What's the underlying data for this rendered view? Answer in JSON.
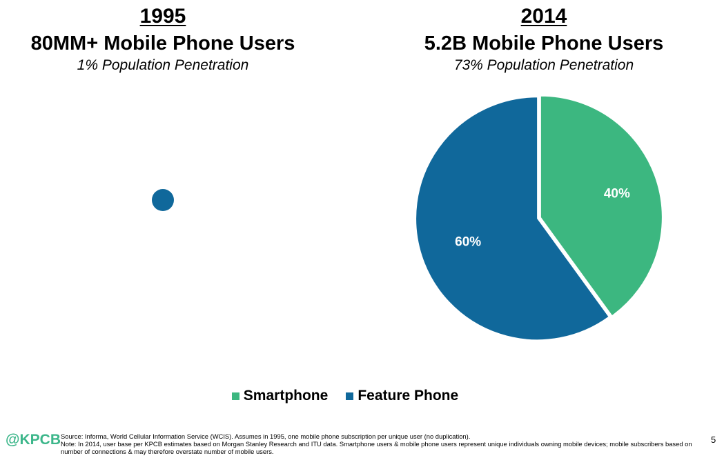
{
  "chart_data": [
    {
      "type": "pie",
      "title": "1995",
      "subtitle": "80MM+ Mobile Phone Users",
      "caption": "1% Population Penetration",
      "slices": [
        {
          "label": "Feature Phone",
          "value": 100
        }
      ]
    },
    {
      "type": "pie",
      "title": "2014",
      "subtitle": "5.2B Mobile Phone Users",
      "caption": "73% Population Penetration",
      "slices": [
        {
          "label": "Smartphone",
          "value": 40,
          "data_label": "40%"
        },
        {
          "label": "Feature Phone",
          "value": 60,
          "data_label": "60%"
        }
      ]
    }
  ],
  "legend": [
    {
      "label": "Smartphone",
      "color": "#3cb780"
    },
    {
      "label": "Feature Phone",
      "color": "#10689b"
    }
  ],
  "colors": {
    "smartphone": "#3cb780",
    "feature_phone": "#10689b",
    "logo": "#3cb68a"
  },
  "footer": {
    "logo": "@KPCB",
    "source": "Source: Informa, World Cellular Information Service (WCIS). Assumes in 1995, one mobile phone subscription per unique user (no duplication).",
    "note": "Note: In 2014, user base per KPCB estimates based on Morgan Stanley Research and ITU data. Smartphone users & mobile phone users represent unique individuals owning mobile devices; mobile subscribers based on number of connections & may therefore overstate number of mobile users.",
    "page": "5"
  }
}
